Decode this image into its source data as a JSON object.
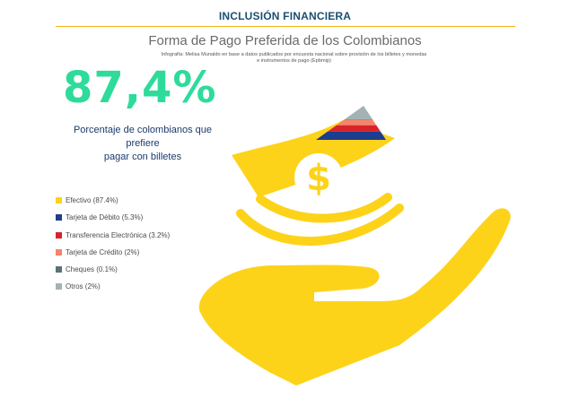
{
  "header": {
    "section": "INCLUSIÓN FINANCIERA",
    "title": "Forma de Pago Preferida de los Colombianos",
    "credit_line1": "Infografía: Melisa Munaldo en base a datos publicados por encuesta nacional sobre provisión de los billetes y monedas",
    "credit_line2": "e instrumentos de pago (Epbmip)"
  },
  "highlight": {
    "value": "87,4%",
    "caption_line1": "Porcentaje de colombianos que prefiere",
    "caption_line2": "pagar con billetes"
  },
  "colors": {
    "accent_rule": "#f2b418",
    "big_number": "#2edb9b",
    "hand_and_bill": "#fdd31a",
    "dollar_symbol": "#fdd31a"
  },
  "icons": [
    "dollar-sign-icon",
    "hand-icon",
    "banknote-icon"
  ],
  "chart_data": {
    "type": "pie",
    "categories": [
      "Efectivo",
      "Tarjeta de Débito",
      "Transferencia Electrónica",
      "Tarjeta de Crédito",
      "Cheques",
      "Otros"
    ],
    "values": [
      87.4,
      5.3,
      3.2,
      2,
      0.1,
      2
    ],
    "labels": [
      "Efectivo (87.4%)",
      "Tarjeta de Débito (5.3%)",
      "Transferencia Electrónica (3.2%)",
      "Tarjeta de Crédito (2%)",
      "Cheques (0.1%)",
      "Otros (2%)"
    ],
    "colors": [
      "#fdd31a",
      "#1d3d8f",
      "#d8232a",
      "#f4846a",
      "#5b7378",
      "#a3b3b5"
    ],
    "legend_position": "left"
  }
}
